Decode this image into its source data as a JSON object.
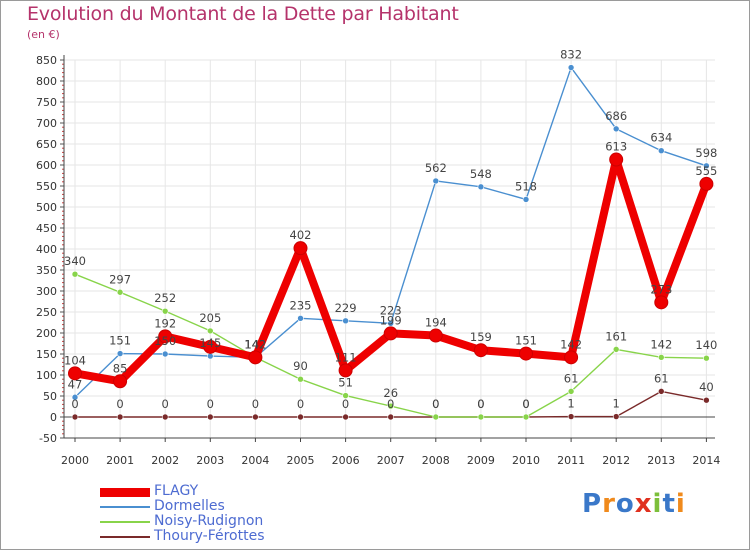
{
  "title": "Evolution du Montant de la Dette par Habitant",
  "subtitle": "(en €)",
  "logo": {
    "text": "Proxiti",
    "colors": [
      "#3a78c9",
      "#f08a1c",
      "#3a78c9",
      "#e0301e",
      "#7cbf3a",
      "#3a78c9",
      "#f08a1c"
    ]
  },
  "chart_data": {
    "type": "line",
    "title": "Evolution du Montant de la Dette par Habitant",
    "ylabel": "(en €)",
    "xlabel": "",
    "ylim": [
      -50,
      850
    ],
    "ytick_step": 50,
    "yticks": [
      "-50",
      "0",
      "50",
      "100",
      "150",
      "200",
      "250",
      "300",
      "350",
      "400",
      "450",
      "500",
      "550",
      "600",
      "650",
      "700",
      "750",
      "800",
      "850"
    ],
    "categories": [
      "2000",
      "2001",
      "2002",
      "2003",
      "2004",
      "2005",
      "2006",
      "2007",
      "2008",
      "2009",
      "2010",
      "2011",
      "2012",
      "2013",
      "2014"
    ],
    "grid": true,
    "legend_position": "bottom-left",
    "series": [
      {
        "name": "FLAGY",
        "color": "#ee0000",
        "values": [
          104,
          85,
          192,
          167,
          142,
          402,
          111,
          199,
          194,
          159,
          151,
          142,
          613,
          273,
          555
        ],
        "labels": [
          "104",
          "85",
          "192",
          "",
          "142",
          "402",
          "111",
          "199",
          "194",
          "159",
          "151",
          "142",
          "613",
          "273",
          "555"
        ]
      },
      {
        "name": "Dormelles",
        "color": "#4a8fd0",
        "values": [
          47,
          151,
          150,
          145,
          142,
          235,
          229,
          223,
          562,
          548,
          518,
          832,
          686,
          634,
          598
        ],
        "labels": [
          "47",
          "151",
          "150",
          "145",
          "142",
          "235",
          "229",
          "223",
          "562",
          "548",
          "518",
          "832",
          "686",
          "634",
          "598"
        ]
      },
      {
        "name": "Noisy-Rudignon",
        "color": "#88d44a",
        "values": [
          340,
          297,
          252,
          205,
          142,
          90,
          51,
          26,
          0,
          0,
          0,
          61,
          161,
          142,
          140
        ],
        "labels": [
          "340",
          "297",
          "252",
          "205",
          "142",
          "90",
          "51",
          "26",
          "0",
          "0",
          "0",
          "61",
          "161",
          "142",
          "140"
        ]
      },
      {
        "name": "Thoury-Férottes",
        "color": "#7a2a2a",
        "values": [
          0,
          0,
          0,
          0,
          0,
          0,
          0,
          0,
          0,
          0,
          0,
          1,
          1,
          61,
          40
        ],
        "labels": [
          "0",
          "0",
          "0",
          "0",
          "0",
          "0",
          "0",
          "0",
          "0",
          "0",
          "0",
          "1",
          "1",
          "61",
          "40"
        ]
      }
    ]
  }
}
